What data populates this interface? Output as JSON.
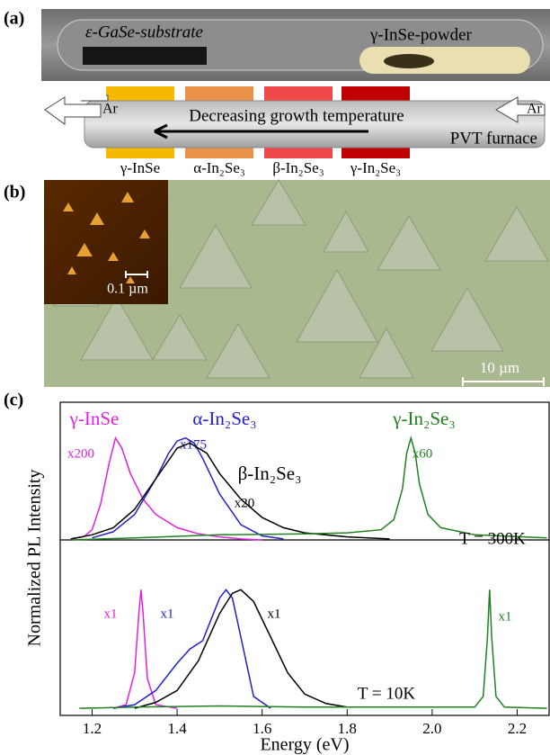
{
  "panel_a": {
    "label": "(a)",
    "substrate": "ε-GaSe-substrate",
    "powder": "γ-InSe-powder",
    "gas_in": "Ar",
    "gas_out": "Ar",
    "arrow_text": "Decreasing growth temperature",
    "furnace": "PVT furnace",
    "zones": [
      "γ-InSe",
      "α-In₂Se₃",
      "β-In₂Se₃",
      "γ-In₂Se₃"
    ]
  },
  "panel_b": {
    "label": "(b)",
    "inset_scale": "0.1 µm",
    "scale": "10 µm"
  },
  "panel_c": {
    "label": "(c)"
  },
  "chart_data": [
    {
      "type": "line",
      "ylabel": "Normalized PL Intensity",
      "annotation": "T = 300K",
      "xlim": [
        1.125,
        2.275
      ],
      "ylim": [
        0,
        1.35
      ],
      "series": [
        {
          "name": "γ-InSe",
          "multiplier": "x200",
          "color": "#e020e0",
          "x": [
            1.15,
            1.18,
            1.2,
            1.22,
            1.24,
            1.255,
            1.27,
            1.29,
            1.32,
            1.35,
            1.4,
            1.45,
            1.5,
            1.55,
            1.6
          ],
          "values": [
            0.01,
            0.03,
            0.1,
            0.35,
            0.75,
            1.0,
            0.9,
            0.65,
            0.4,
            0.25,
            0.12,
            0.06,
            0.03,
            0.01,
            0.0
          ]
        },
        {
          "name": "α-In₂Se₃",
          "multiplier": "x175",
          "color": "#2020d0",
          "x": [
            1.2,
            1.25,
            1.3,
            1.35,
            1.38,
            1.4,
            1.42,
            1.44,
            1.46,
            1.5,
            1.55,
            1.6,
            1.65
          ],
          "values": [
            0.02,
            0.08,
            0.25,
            0.6,
            0.85,
            0.97,
            1.0,
            0.95,
            0.8,
            0.45,
            0.15,
            0.04,
            0.01
          ]
        },
        {
          "name": "β-In₂Se₃",
          "multiplier": "x20",
          "color": "#000000",
          "x": [
            1.15,
            1.2,
            1.25,
            1.3,
            1.35,
            1.4,
            1.43,
            1.47,
            1.5,
            1.55,
            1.6,
            1.65,
            1.7,
            1.8,
            1.9
          ],
          "values": [
            0.01,
            0.05,
            0.12,
            0.3,
            0.6,
            0.9,
            0.95,
            0.85,
            0.65,
            0.4,
            0.22,
            0.12,
            0.07,
            0.03,
            0.01
          ]
        },
        {
          "name": "γ-In₂Se₃",
          "multiplier": "x60",
          "color": "#208020",
          "x": [
            1.15,
            1.3,
            1.5,
            1.7,
            1.8,
            1.88,
            1.91,
            1.93,
            1.94,
            1.95,
            1.96,
            1.97,
            1.99,
            2.02,
            2.1,
            2.27
          ],
          "values": [
            0.0,
            0.02,
            0.05,
            0.06,
            0.07,
            0.1,
            0.2,
            0.5,
            0.85,
            1.0,
            0.85,
            0.55,
            0.25,
            0.12,
            0.05,
            0.02
          ]
        }
      ]
    },
    {
      "type": "line",
      "xlabel": "Energy (eV)",
      "annotation": "T = 10K",
      "xlim": [
        1.125,
        2.275
      ],
      "ylim": [
        -0.06,
        1.42
      ],
      "xticks": [
        1.2,
        1.4,
        1.6,
        1.8,
        {
          "value": 2,
          "label": "2.0"
        },
        2.2
      ],
      "series": [
        {
          "multiplier": "x1",
          "color": "#e020e0",
          "x": [
            1.25,
            1.28,
            1.3,
            1.31,
            1.315,
            1.32,
            1.33,
            1.35,
            1.4
          ],
          "values": [
            0,
            0.03,
            0.3,
            0.8,
            1.0,
            0.8,
            0.25,
            0.03,
            0
          ]
        },
        {
          "multiplier": "x1",
          "color": "#2020d0",
          "x": [
            1.25,
            1.3,
            1.35,
            1.4,
            1.43,
            1.46,
            1.48,
            1.5,
            1.515,
            1.53,
            1.55,
            1.58,
            1.62
          ],
          "values": [
            0,
            0.03,
            0.15,
            0.38,
            0.5,
            0.57,
            0.75,
            0.93,
            1.0,
            0.93,
            0.6,
            0.1,
            0
          ]
        },
        {
          "multiplier": "x1",
          "color": "#000000",
          "x": [
            1.3,
            1.35,
            1.4,
            1.45,
            1.5,
            1.53,
            1.55,
            1.58,
            1.62,
            1.66,
            1.7,
            1.75,
            1.8
          ],
          "values": [
            0,
            0.05,
            0.15,
            0.4,
            0.8,
            0.97,
            1.0,
            0.9,
            0.6,
            0.3,
            0.12,
            0.04,
            0.01
          ]
        },
        {
          "multiplier": "x1",
          "color": "#208020",
          "x": [
            1.17,
            1.3,
            1.5,
            1.7,
            2.1,
            2.12,
            2.13,
            2.135,
            2.14,
            2.15,
            2.17,
            2.27
          ],
          "values": [
            0,
            0.01,
            0.02,
            0.01,
            0.01,
            0.1,
            0.6,
            1.0,
            0.6,
            0.1,
            0.01,
            0
          ]
        }
      ]
    }
  ]
}
